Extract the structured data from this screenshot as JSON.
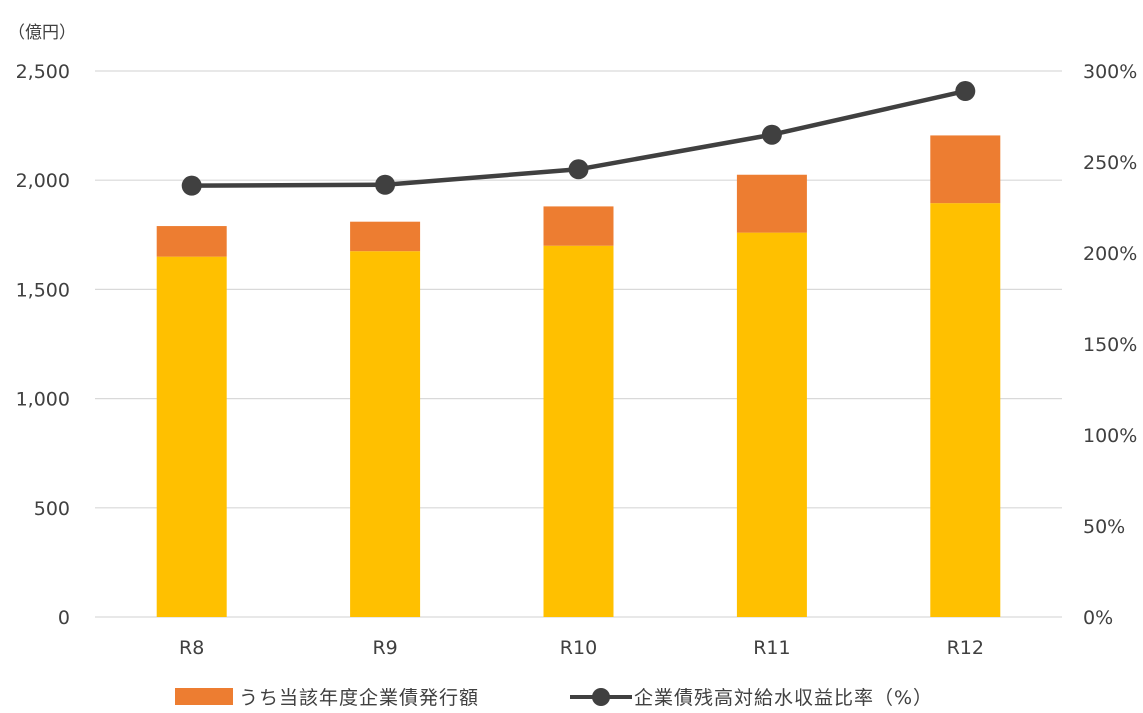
{
  "chart_data": {
    "type": "bar",
    "stacked": true,
    "categories": [
      "R8",
      "R9",
      "R10",
      "R11",
      "R12"
    ],
    "unit_label": "（億円）",
    "series": [
      {
        "name": "",
        "type": "bar",
        "axis": "left",
        "color": "#FFC000",
        "values": [
          1650,
          1675,
          1700,
          1760,
          1895
        ]
      },
      {
        "name": "うち当該年度企業債発行額",
        "type": "bar",
        "axis": "left",
        "color": "#ED7D31",
        "values": [
          140,
          135,
          180,
          265,
          310
        ]
      },
      {
        "name": "企業債残高対給水収益比率（%）",
        "type": "line",
        "axis": "right",
        "color": "#404040",
        "values": [
          237,
          237.5,
          246,
          265,
          289
        ]
      }
    ],
    "y_left": {
      "min": 0,
      "max": 2500,
      "ticks": [
        0,
        500,
        1000,
        1500,
        2000,
        2500
      ],
      "tick_labels": [
        "0",
        "500",
        "1,000",
        "1,500",
        "2,000",
        "2,500"
      ]
    },
    "y_right": {
      "min": 0,
      "max": 300,
      "ticks": [
        0,
        50,
        100,
        150,
        200,
        250,
        300
      ],
      "tick_labels": [
        "0%",
        "50%",
        "100%",
        "150%",
        "200%",
        "250%",
        "300%"
      ]
    },
    "grid": true,
    "legend_position": "bottom"
  }
}
